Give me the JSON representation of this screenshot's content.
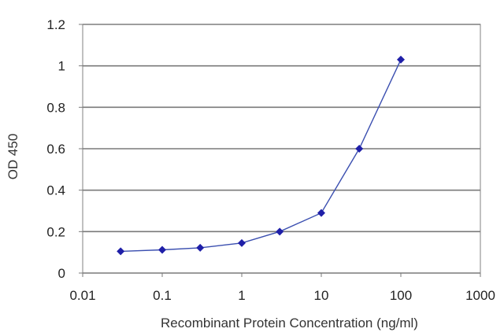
{
  "chart_data": {
    "type": "line",
    "title": "",
    "xlabel": "Recombinant Protein Concentration (ng/ml)",
    "ylabel": "OD 450",
    "x_scale": "log",
    "xlim": [
      0.01,
      1000
    ],
    "ylim": [
      0,
      1.2
    ],
    "x_ticks": [
      0.01,
      0.1,
      1,
      10,
      100,
      1000
    ],
    "x_tick_labels": [
      "0.01",
      "0.1",
      "1",
      "10",
      "100",
      "1000"
    ],
    "y_ticks": [
      0,
      0.2,
      0.4,
      0.6,
      0.8,
      1,
      1.2
    ],
    "y_tick_labels": [
      "0",
      "0.2",
      "0.4",
      "0.6",
      "0.8",
      "1",
      "1.2"
    ],
    "grid": "horizontal",
    "legend": "none",
    "series": [
      {
        "x": [
          0.03,
          0.1,
          0.3,
          1,
          3,
          10,
          30,
          100
        ],
        "y": [
          0.105,
          0.112,
          0.122,
          0.145,
          0.2,
          0.29,
          0.6,
          1.03
        ],
        "color": "#3b4fb0",
        "marker": "diamond",
        "marker_color": "#1f1fa8"
      }
    ]
  }
}
